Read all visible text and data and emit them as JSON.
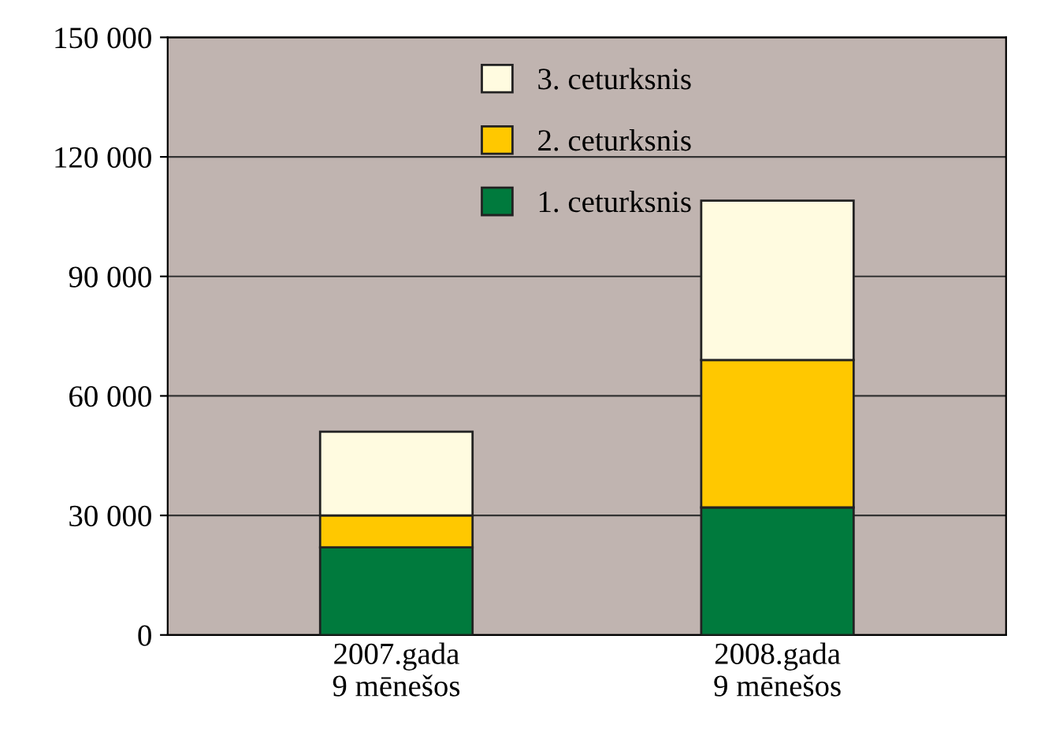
{
  "chart_data": {
    "type": "bar",
    "stacked": true,
    "categories": [
      "2007.gada\n9 mēnešos",
      "2008.gada\n9 mēnešos"
    ],
    "series": [
      {
        "name": "1. ceturksnis",
        "color": "#007a3d",
        "values": [
          22000,
          32000
        ]
      },
      {
        "name": "2. ceturksnis",
        "color": "#ffc800",
        "values": [
          8000,
          37000
        ]
      },
      {
        "name": "3. ceturksnis",
        "color": "#fffbe0",
        "values": [
          21000,
          40000
        ]
      }
    ],
    "ylim": [
      0,
      150000
    ],
    "yticks": [
      0,
      {
        "value": 30000,
        "label": "30 000"
      },
      {
        "value": 60000,
        "label": "60 000"
      },
      {
        "value": 90000,
        "label": "90 000"
      },
      {
        "value": 120000,
        "label": "120 000"
      },
      {
        "value": 150000,
        "label": "150 000"
      }
    ],
    "grid": "y",
    "legend": "top"
  }
}
